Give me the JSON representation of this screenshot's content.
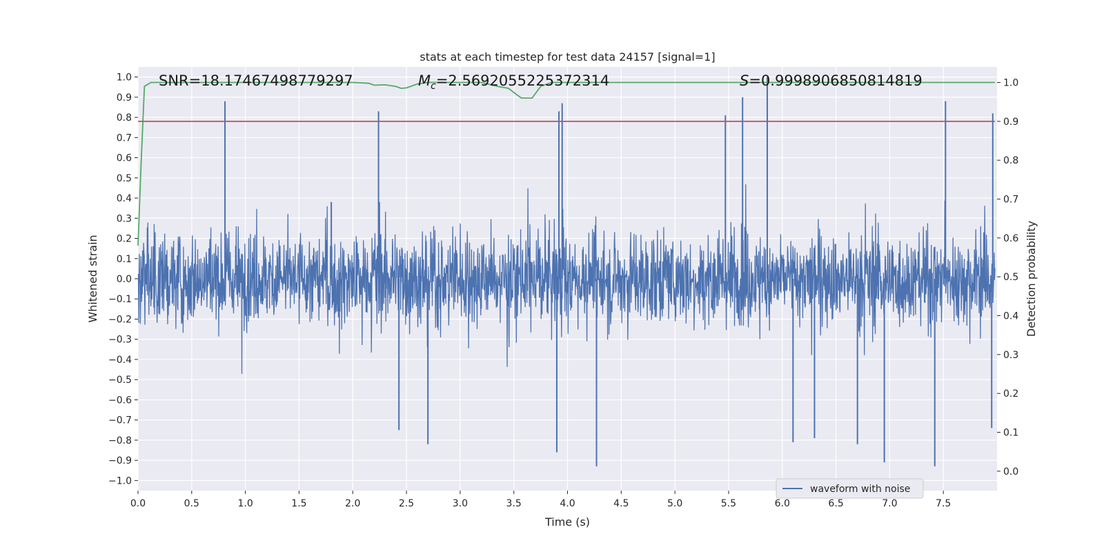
{
  "chart_data": {
    "type": "line",
    "title": "stats at each timestep for test data 24157 [signal=1]",
    "xlabel": "Time (s)",
    "ylabel": "Whitened strain",
    "y2label": "Detection probability",
    "xlim": [
      0.0,
      8.0
    ],
    "ylim": [
      -1.05,
      1.05
    ],
    "y2lim": [
      -0.05,
      1.04
    ],
    "xticks": [
      "0.0",
      "0.5",
      "1.0",
      "1.5",
      "2.0",
      "2.5",
      "3.0",
      "3.5",
      "4.0",
      "4.5",
      "5.0",
      "5.5",
      "6.0",
      "6.5",
      "7.0",
      "7.5"
    ],
    "xtick_values": [
      0.0,
      0.5,
      1.0,
      1.5,
      2.0,
      2.5,
      3.0,
      3.5,
      4.0,
      4.5,
      5.0,
      5.5,
      6.0,
      6.5,
      7.0,
      7.5
    ],
    "yticks": [
      "1.0",
      "0.9",
      "0.8",
      "0.7",
      "0.6",
      "0.5",
      "0.4",
      "0.3",
      "0.2",
      "0.1",
      "0.0",
      "−0.1",
      "−0.2",
      "−0.3",
      "−0.4",
      "−0.5",
      "−0.6",
      "−0.7",
      "−0.8",
      "−0.9",
      "−1.0"
    ],
    "ytick_values": [
      1.0,
      0.9,
      0.8,
      0.7,
      0.6,
      0.5,
      0.4,
      0.3,
      0.2,
      0.1,
      0.0,
      -0.1,
      -0.2,
      -0.3,
      -0.4,
      -0.5,
      -0.6,
      -0.7,
      -0.8,
      -0.9,
      -1.0
    ],
    "y2ticks": [
      "1.0",
      "0.9",
      "0.8",
      "0.7",
      "0.6",
      "0.5",
      "0.4",
      "0.3",
      "0.2",
      "0.1",
      "0.0"
    ],
    "y2tick_values": [
      1.0,
      0.9,
      0.8,
      0.7,
      0.6,
      0.5,
      0.4,
      0.3,
      0.2,
      0.1,
      0.0
    ],
    "grid": true,
    "legend_position": "bottom-right",
    "colors": {
      "background": "#eaeaf2",
      "grid": "#ffffff",
      "waveform": "#4c72b0",
      "probability": "#55a868",
      "threshold": "#c44e52"
    },
    "annotations": {
      "snr": "SNR=18.17467498779297",
      "mc_symbol": "M",
      "mc_sub": "c",
      "mc_value": "=2.5692055225372314",
      "s_symbol": "S",
      "s_value": "=0.9998906850814819"
    },
    "series": [
      {
        "name": "waveform with noise",
        "axis": "left",
        "description_kind": "dense noisy strain",
        "envelope_peaks_positive": [
          [
            0.81,
            0.88
          ],
          [
            1.8,
            0.38
          ],
          [
            2.24,
            0.83
          ],
          [
            3.92,
            0.83
          ],
          [
            3.95,
            0.87
          ],
          [
            5.47,
            0.81
          ],
          [
            5.63,
            0.9
          ],
          [
            5.86,
            1.0
          ],
          [
            7.52,
            0.88
          ],
          [
            7.96,
            0.82
          ]
        ],
        "envelope_peaks_negative": [
          [
            2.43,
            -0.75
          ],
          [
            2.7,
            -0.82
          ],
          [
            3.9,
            -0.86
          ],
          [
            4.27,
            -0.93
          ],
          [
            6.1,
            -0.81
          ],
          [
            6.3,
            -0.79
          ],
          [
            6.7,
            -0.82
          ],
          [
            6.95,
            -0.91
          ],
          [
            7.42,
            -0.93
          ],
          [
            7.95,
            -0.74
          ]
        ]
      },
      {
        "axis": "right",
        "x": [
          0.0,
          0.03,
          0.06,
          0.12,
          0.2,
          0.5,
          1.0,
          1.5,
          2.0,
          2.15,
          2.2,
          2.3,
          2.4,
          2.45,
          2.5,
          2.6,
          2.7,
          3.0,
          3.2,
          3.35,
          3.45,
          3.52,
          3.57,
          3.62,
          3.67,
          3.75,
          3.85,
          4.0,
          4.5,
          5.0,
          5.5,
          6.0,
          6.5,
          7.0,
          7.5,
          7.98
        ],
        "y": [
          0.58,
          0.8,
          0.99,
          1.0,
          1.0,
          1.0,
          1.0,
          1.0,
          1.0,
          0.998,
          0.993,
          0.994,
          0.99,
          0.985,
          0.986,
          0.996,
          1.0,
          1.0,
          1.0,
          0.99,
          0.985,
          0.97,
          0.96,
          0.96,
          0.96,
          0.99,
          1.0,
          1.0,
          1.0,
          1.0,
          1.0,
          1.0,
          1.0,
          1.0,
          1.0,
          1.0
        ]
      },
      {
        "axis": "right",
        "x": [
          0.0,
          7.98
        ],
        "y": [
          0.9,
          0.9
        ]
      }
    ]
  }
}
